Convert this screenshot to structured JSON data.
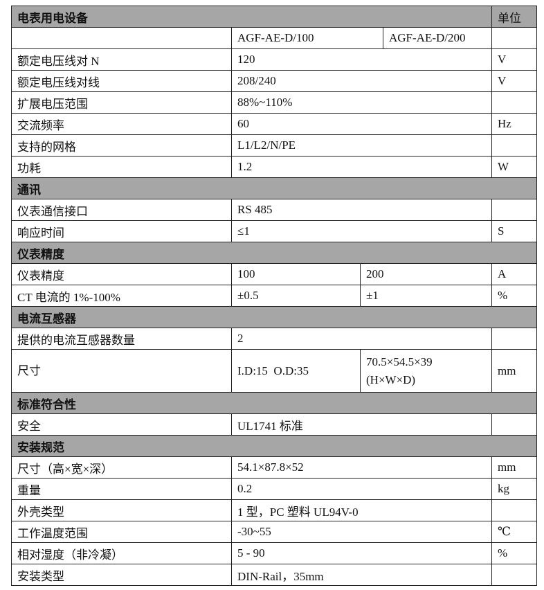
{
  "sections": {
    "electrical": "电表用电设备",
    "unit_header": "单位",
    "comm": "通讯",
    "accuracy": "仪表精度",
    "ct": "电流互感器",
    "standards": "标准符合性",
    "install": "安装规范"
  },
  "models": [
    "AGF-AE-D/100",
    "AGF-AE-D/200"
  ],
  "electrical_rows": [
    {
      "label": "额定电压线对 N",
      "value": "120",
      "unit": "V"
    },
    {
      "label": "额定电压线对线",
      "value": "208/240",
      "unit": "V"
    },
    {
      "label": "扩展电压范围",
      "value": "88%~110%",
      "unit": ""
    },
    {
      "label": "交流频率",
      "value": "60",
      "unit": "Hz"
    },
    {
      "label": "支持的网格",
      "value": "L1/L2/N/PE",
      "unit": ""
    },
    {
      "label": "功耗",
      "value": "1.2",
      "unit": "W"
    }
  ],
  "comm_rows": [
    {
      "label": "仪表通信接口",
      "value": "RS 485",
      "unit": ""
    },
    {
      "label": "响应时间",
      "value": "≤1",
      "unit": "S"
    }
  ],
  "accuracy_rows": [
    {
      "label": "仪表精度",
      "v1": "100",
      "v2": "200",
      "unit": "A"
    },
    {
      "label": "CT 电流的 1%-100%",
      "v1": "±0.5",
      "v2": "±1",
      "unit": "%"
    }
  ],
  "ct_rows": {
    "count": {
      "label": "提供的电流互感器数量",
      "value": "2",
      "unit": ""
    },
    "size": {
      "label": "尺寸",
      "v1": "I.D:15  O.D:35",
      "v2_line1": "70.5×54.5×39",
      "v2_line2": "(H×W×D)",
      "unit": "mm"
    }
  },
  "standards_rows": [
    {
      "label": "安全",
      "value": "UL1741 标准",
      "unit": ""
    }
  ],
  "install_rows": [
    {
      "label": "尺寸（高×宽×深）",
      "value": "54.1×87.8×52",
      "unit": "mm"
    },
    {
      "label": "重量",
      "value": "0.2",
      "unit": "kg"
    },
    {
      "label": "外壳类型",
      "value": "1 型，PC 塑料 UL94V-0",
      "unit": ""
    },
    {
      "label": "工作温度范围",
      "value": "-30~55",
      "unit": "℃"
    },
    {
      "label": "相对湿度（非冷凝）",
      "value": "5 - 90",
      "unit": "%"
    },
    {
      "label": "安装类型",
      "value": "DIN-Rail，35mm",
      "unit": ""
    }
  ]
}
